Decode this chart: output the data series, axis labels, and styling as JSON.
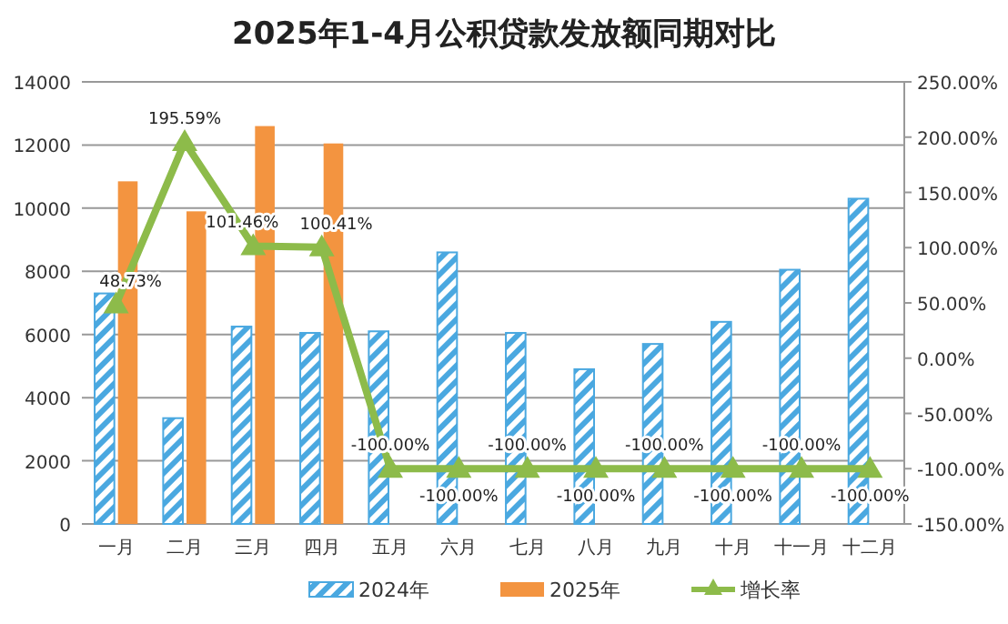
{
  "chart_data": {
    "type": "bar",
    "title": "2025年1-4月公积贷款发放额同期对比",
    "categories": [
      "一月",
      "二月",
      "三月",
      "四月",
      "五月",
      "六月",
      "七月",
      "八月",
      "九月",
      "十月",
      "十一月",
      "十二月"
    ],
    "series": [
      {
        "name": "2024年",
        "color": "#4aa8e0",
        "values": [
          7300,
          3350,
          6250,
          6050,
          6100,
          8600,
          6050,
          4900,
          5700,
          6400,
          8050,
          10300
        ]
      },
      {
        "name": "2025年",
        "color": "#f39440",
        "values": [
          10850,
          9900,
          12600,
          12050,
          null,
          null,
          null,
          null,
          null,
          null,
          null,
          null
        ]
      },
      {
        "name": "增长率",
        "type": "line",
        "axis": "y2",
        "color": "#8dbb4a",
        "marker": "triangle",
        "values": [
          48.73,
          195.59,
          101.46,
          100.41,
          -100,
          -100,
          -100,
          -100,
          -100,
          -100,
          -100,
          -100
        ],
        "value_labels": [
          "48.73%",
          "195.59%",
          "101.46%",
          "100.41%",
          "-100.00%",
          "-100.00%",
          "-100.00%",
          "-100.00%",
          "-100.00%",
          "-100.00%",
          "-100.00%",
          "-100.00%"
        ]
      }
    ],
    "ylim": [
      0,
      14000
    ],
    "yticks": [
      0,
      2000,
      4000,
      6000,
      8000,
      10000,
      12000,
      14000
    ],
    "y2lim": [
      -150,
      250
    ],
    "y2ticks": [
      {
        "value": -150,
        "label": "-150.00%"
      },
      {
        "value": -100,
        "label": "-100.00%"
      },
      {
        "value": -50,
        "label": "-50.00%"
      },
      {
        "value": 0,
        "label": "0.00%"
      },
      {
        "value": 50,
        "label": "50.00%"
      },
      {
        "value": 100,
        "label": "100.00%"
      },
      {
        "value": 150,
        "label": "150.00%"
      },
      {
        "value": 200,
        "label": "200.00%"
      },
      {
        "value": 250,
        "label": "250.00%"
      }
    ],
    "grid": "y",
    "legend": "bottom"
  }
}
